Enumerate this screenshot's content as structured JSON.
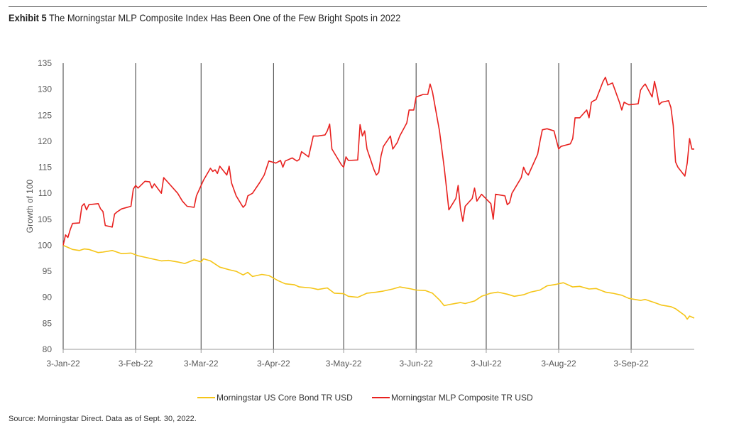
{
  "header": {
    "exhibit": "Exhibit 5",
    "title": "The Morningstar MLP Composite Index Has Been One of the Few Bright Spots in 2022"
  },
  "footer": {
    "source": "Source: Morningstar Direct. Data as of Sept. 30, 2022."
  },
  "chart_data": {
    "type": "line",
    "title": "",
    "xlabel": "",
    "ylabel": "Growth of 100",
    "ylim": [
      80,
      135
    ],
    "yticks": [
      80,
      85,
      90,
      95,
      100,
      105,
      110,
      115,
      120,
      125,
      130,
      135
    ],
    "xlim": [
      "2022-01-03",
      "2022-09-30"
    ],
    "xticks": [
      {
        "date": "2022-01-03",
        "label": "3-Jan-22"
      },
      {
        "date": "2022-02-03",
        "label": "3-Feb-22"
      },
      {
        "date": "2022-03-03",
        "label": "3-Mar-22"
      },
      {
        "date": "2022-04-03",
        "label": "3-Apr-22"
      },
      {
        "date": "2022-05-03",
        "label": "3-May-22"
      },
      {
        "date": "2022-06-03",
        "label": "3-Jun-22"
      },
      {
        "date": "2022-07-03",
        "label": "3-Jul-22"
      },
      {
        "date": "2022-08-03",
        "label": "3-Aug-22"
      },
      {
        "date": "2022-09-03",
        "label": "3-Sep-22"
      }
    ],
    "vertical_gridlines": true,
    "horizontal_gridlines": false,
    "legend_position": "bottom",
    "series": [
      {
        "name": "Morningstar US Core Bond TR USD",
        "color": "#F5C518",
        "points": [
          [
            "2022-01-03",
            100.0
          ],
          [
            "2022-01-05",
            99.6
          ],
          [
            "2022-01-07",
            99.2
          ],
          [
            "2022-01-10",
            99.0
          ],
          [
            "2022-01-12",
            99.3
          ],
          [
            "2022-01-14",
            99.2
          ],
          [
            "2022-01-18",
            98.6
          ],
          [
            "2022-01-20",
            98.7
          ],
          [
            "2022-01-24",
            99.0
          ],
          [
            "2022-01-26",
            98.7
          ],
          [
            "2022-01-28",
            98.4
          ],
          [
            "2022-02-01",
            98.5
          ],
          [
            "2022-02-04",
            98.0
          ],
          [
            "2022-02-08",
            97.6
          ],
          [
            "2022-02-10",
            97.4
          ],
          [
            "2022-02-14",
            97.0
          ],
          [
            "2022-02-17",
            97.1
          ],
          [
            "2022-02-21",
            96.8
          ],
          [
            "2022-02-24",
            96.5
          ],
          [
            "2022-02-28",
            97.2
          ],
          [
            "2022-03-03",
            96.8
          ],
          [
            "2022-03-04",
            97.4
          ],
          [
            "2022-03-07",
            97.0
          ],
          [
            "2022-03-09",
            96.4
          ],
          [
            "2022-03-11",
            95.8
          ],
          [
            "2022-03-15",
            95.3
          ],
          [
            "2022-03-18",
            95.0
          ],
          [
            "2022-03-21",
            94.3
          ],
          [
            "2022-03-23",
            94.8
          ],
          [
            "2022-03-25",
            94.0
          ],
          [
            "2022-03-29",
            94.4
          ],
          [
            "2022-04-01",
            94.2
          ],
          [
            "2022-04-05",
            93.2
          ],
          [
            "2022-04-08",
            92.6
          ],
          [
            "2022-04-12",
            92.4
          ],
          [
            "2022-04-14",
            92.0
          ],
          [
            "2022-04-19",
            91.8
          ],
          [
            "2022-04-22",
            91.5
          ],
          [
            "2022-04-26",
            91.8
          ],
          [
            "2022-04-29",
            90.8
          ],
          [
            "2022-05-03",
            90.7
          ],
          [
            "2022-05-05",
            90.2
          ],
          [
            "2022-05-09",
            90.0
          ],
          [
            "2022-05-11",
            90.4
          ],
          [
            "2022-05-13",
            90.8
          ],
          [
            "2022-05-17",
            91.0
          ],
          [
            "2022-05-20",
            91.2
          ],
          [
            "2022-05-24",
            91.6
          ],
          [
            "2022-05-27",
            92.0
          ],
          [
            "2022-06-01",
            91.6
          ],
          [
            "2022-06-03",
            91.4
          ],
          [
            "2022-06-07",
            91.3
          ],
          [
            "2022-06-10",
            90.8
          ],
          [
            "2022-06-13",
            89.5
          ],
          [
            "2022-06-15",
            88.4
          ],
          [
            "2022-06-17",
            88.6
          ],
          [
            "2022-06-22",
            89.0
          ],
          [
            "2022-06-24",
            88.8
          ],
          [
            "2022-06-28",
            89.3
          ],
          [
            "2022-07-01",
            90.2
          ],
          [
            "2022-07-05",
            90.8
          ],
          [
            "2022-07-08",
            91.0
          ],
          [
            "2022-07-12",
            90.6
          ],
          [
            "2022-07-15",
            90.2
          ],
          [
            "2022-07-19",
            90.5
          ],
          [
            "2022-07-22",
            91.0
          ],
          [
            "2022-07-26",
            91.4
          ],
          [
            "2022-07-29",
            92.2
          ],
          [
            "2022-08-02",
            92.5
          ],
          [
            "2022-08-05",
            92.8
          ],
          [
            "2022-08-09",
            92.0
          ],
          [
            "2022-08-12",
            92.1
          ],
          [
            "2022-08-16",
            91.6
          ],
          [
            "2022-08-19",
            91.7
          ],
          [
            "2022-08-23",
            91.0
          ],
          [
            "2022-08-26",
            90.8
          ],
          [
            "2022-08-30",
            90.4
          ],
          [
            "2022-09-02",
            89.8
          ],
          [
            "2022-09-07",
            89.4
          ],
          [
            "2022-09-09",
            89.6
          ],
          [
            "2022-09-13",
            89.0
          ],
          [
            "2022-09-16",
            88.5
          ],
          [
            "2022-09-20",
            88.2
          ],
          [
            "2022-09-22",
            87.8
          ],
          [
            "2022-09-26",
            86.5
          ],
          [
            "2022-09-27",
            85.8
          ],
          [
            "2022-09-28",
            86.4
          ],
          [
            "2022-09-30",
            86.0
          ]
        ]
      },
      {
        "name": "Morningstar MLP Composite TR USD",
        "color": "#E8211F",
        "points": [
          [
            "2022-01-03",
            100.0
          ],
          [
            "2022-01-04",
            102.0
          ],
          [
            "2022-01-05",
            101.5
          ],
          [
            "2022-01-06",
            103.0
          ],
          [
            "2022-01-07",
            104.2
          ],
          [
            "2022-01-10",
            104.3
          ],
          [
            "2022-01-11",
            107.5
          ],
          [
            "2022-01-12",
            108.0
          ],
          [
            "2022-01-13",
            106.8
          ],
          [
            "2022-01-14",
            107.8
          ],
          [
            "2022-01-18",
            108.0
          ],
          [
            "2022-01-19",
            107.0
          ],
          [
            "2022-01-20",
            106.5
          ],
          [
            "2022-01-21",
            103.8
          ],
          [
            "2022-01-24",
            103.5
          ],
          [
            "2022-01-25",
            106.0
          ],
          [
            "2022-01-26",
            106.4
          ],
          [
            "2022-01-28",
            107.0
          ],
          [
            "2022-02-01",
            107.5
          ],
          [
            "2022-02-02",
            110.8
          ],
          [
            "2022-02-03",
            111.5
          ],
          [
            "2022-02-04",
            111.0
          ],
          [
            "2022-02-07",
            112.3
          ],
          [
            "2022-02-09",
            112.2
          ],
          [
            "2022-02-10",
            111.0
          ],
          [
            "2022-02-11",
            111.8
          ],
          [
            "2022-02-14",
            110.0
          ],
          [
            "2022-02-15",
            113.0
          ],
          [
            "2022-02-17",
            112.0
          ],
          [
            "2022-02-21",
            110.0
          ],
          [
            "2022-02-23",
            108.5
          ],
          [
            "2022-02-25",
            107.5
          ],
          [
            "2022-02-28",
            107.3
          ],
          [
            "2022-03-01",
            109.5
          ],
          [
            "2022-03-04",
            112.5
          ],
          [
            "2022-03-07",
            114.8
          ],
          [
            "2022-03-08",
            114.2
          ],
          [
            "2022-03-09",
            114.5
          ],
          [
            "2022-03-10",
            113.8
          ],
          [
            "2022-03-11",
            115.2
          ],
          [
            "2022-03-14",
            113.5
          ],
          [
            "2022-03-15",
            115.2
          ],
          [
            "2022-03-16",
            112.0
          ],
          [
            "2022-03-18",
            109.5
          ],
          [
            "2022-03-21",
            107.3
          ],
          [
            "2022-03-22",
            107.8
          ],
          [
            "2022-03-23",
            109.5
          ],
          [
            "2022-03-25",
            110.0
          ],
          [
            "2022-03-28",
            112.0
          ],
          [
            "2022-03-30",
            113.5
          ],
          [
            "2022-04-01",
            116.2
          ],
          [
            "2022-04-04",
            115.8
          ],
          [
            "2022-04-06",
            116.3
          ],
          [
            "2022-04-07",
            115.0
          ],
          [
            "2022-04-08",
            116.2
          ],
          [
            "2022-04-11",
            116.8
          ],
          [
            "2022-04-13",
            116.2
          ],
          [
            "2022-04-14",
            116.5
          ],
          [
            "2022-04-15",
            118.0
          ],
          [
            "2022-04-18",
            117.0
          ],
          [
            "2022-04-20",
            121.0
          ],
          [
            "2022-04-22",
            121.0
          ],
          [
            "2022-04-25",
            121.2
          ],
          [
            "2022-04-26",
            122.0
          ],
          [
            "2022-04-27",
            123.3
          ],
          [
            "2022-04-28",
            118.5
          ],
          [
            "2022-05-02",
            115.5
          ],
          [
            "2022-05-03",
            115.0
          ],
          [
            "2022-05-04",
            117.0
          ],
          [
            "2022-05-05",
            116.3
          ],
          [
            "2022-05-09",
            116.4
          ],
          [
            "2022-05-10",
            123.2
          ],
          [
            "2022-05-11",
            121.0
          ],
          [
            "2022-05-12",
            122.0
          ],
          [
            "2022-05-13",
            118.5
          ],
          [
            "2022-05-16",
            114.5
          ],
          [
            "2022-05-17",
            113.5
          ],
          [
            "2022-05-18",
            114.0
          ],
          [
            "2022-05-19",
            117.2
          ],
          [
            "2022-05-20",
            119.0
          ],
          [
            "2022-05-23",
            121.0
          ],
          [
            "2022-05-24",
            118.5
          ],
          [
            "2022-05-26",
            119.8
          ],
          [
            "2022-05-27",
            121.0
          ],
          [
            "2022-05-30",
            123.5
          ],
          [
            "2022-05-31",
            126.0
          ],
          [
            "2022-06-02",
            126.0
          ],
          [
            "2022-06-03",
            128.5
          ],
          [
            "2022-06-06",
            129.0
          ],
          [
            "2022-06-08",
            129.0
          ],
          [
            "2022-06-09",
            131.0
          ],
          [
            "2022-06-10",
            129.5
          ],
          [
            "2022-06-13",
            122.0
          ],
          [
            "2022-06-15",
            115.0
          ],
          [
            "2022-06-16",
            111.0
          ],
          [
            "2022-06-17",
            106.8
          ],
          [
            "2022-06-20",
            109.0
          ],
          [
            "2022-06-21",
            111.5
          ],
          [
            "2022-06-22",
            107.0
          ],
          [
            "2022-06-23",
            104.6
          ],
          [
            "2022-06-24",
            107.5
          ],
          [
            "2022-06-27",
            109.0
          ],
          [
            "2022-06-28",
            111.0
          ],
          [
            "2022-06-29",
            108.5
          ],
          [
            "2022-07-01",
            109.8
          ],
          [
            "2022-07-05",
            108.0
          ],
          [
            "2022-07-06",
            105.0
          ],
          [
            "2022-07-07",
            109.8
          ],
          [
            "2022-07-11",
            109.5
          ],
          [
            "2022-07-12",
            107.8
          ],
          [
            "2022-07-13",
            108.2
          ],
          [
            "2022-07-14",
            110.0
          ],
          [
            "2022-07-18",
            113.0
          ],
          [
            "2022-07-19",
            115.0
          ],
          [
            "2022-07-20",
            114.0
          ],
          [
            "2022-07-21",
            113.5
          ],
          [
            "2022-07-25",
            117.5
          ],
          [
            "2022-07-26",
            120.0
          ],
          [
            "2022-07-27",
            122.2
          ],
          [
            "2022-07-29",
            122.4
          ],
          [
            "2022-08-01",
            122.0
          ],
          [
            "2022-08-03",
            118.5
          ],
          [
            "2022-08-04",
            119.0
          ],
          [
            "2022-08-08",
            119.5
          ],
          [
            "2022-08-09",
            120.5
          ],
          [
            "2022-08-10",
            124.5
          ],
          [
            "2022-08-12",
            124.5
          ],
          [
            "2022-08-15",
            126.0
          ],
          [
            "2022-08-16",
            124.5
          ],
          [
            "2022-08-17",
            127.5
          ],
          [
            "2022-08-18",
            127.8
          ],
          [
            "2022-08-19",
            128.0
          ],
          [
            "2022-08-22",
            131.5
          ],
          [
            "2022-08-23",
            132.3
          ],
          [
            "2022-08-24",
            130.8
          ],
          [
            "2022-08-26",
            131.2
          ],
          [
            "2022-08-29",
            127.5
          ],
          [
            "2022-08-30",
            126.0
          ],
          [
            "2022-08-31",
            127.5
          ],
          [
            "2022-09-02",
            127.0
          ],
          [
            "2022-09-06",
            127.2
          ],
          [
            "2022-09-07",
            129.8
          ],
          [
            "2022-09-08",
            130.5
          ],
          [
            "2022-09-09",
            131.0
          ],
          [
            "2022-09-12",
            128.5
          ],
          [
            "2022-09-13",
            131.5
          ],
          [
            "2022-09-14",
            129.5
          ],
          [
            "2022-09-15",
            127.0
          ],
          [
            "2022-09-16",
            127.5
          ],
          [
            "2022-09-19",
            127.8
          ],
          [
            "2022-09-20",
            126.5
          ],
          [
            "2022-09-21",
            123.0
          ],
          [
            "2022-09-22",
            116.0
          ],
          [
            "2022-09-23",
            115.0
          ],
          [
            "2022-09-26",
            113.3
          ],
          [
            "2022-09-27",
            115.8
          ],
          [
            "2022-09-28",
            120.5
          ],
          [
            "2022-09-29",
            118.5
          ],
          [
            "2022-09-30",
            118.5
          ]
        ]
      }
    ]
  }
}
